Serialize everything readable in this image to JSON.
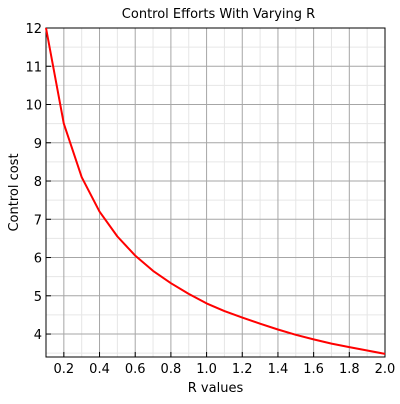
{
  "chart_data": {
    "type": "line",
    "title": "Control Efforts With Varying R",
    "xlabel": "R values",
    "ylabel": "Control cost",
    "xlim": [
      0.1,
      2.0
    ],
    "ylim": [
      3.4,
      12
    ],
    "x_ticks": [
      0.2,
      0.4,
      0.6,
      0.8,
      1.0,
      1.2,
      1.4,
      1.6,
      1.8,
      2.0
    ],
    "x_tick_labels": [
      "0.2",
      "0.4",
      "0.6",
      "0.8",
      "1.0",
      "1.2",
      "1.4",
      "1.6",
      "1.8",
      "2.0"
    ],
    "y_ticks": [
      4,
      5,
      6,
      7,
      8,
      9,
      10,
      11,
      12
    ],
    "y_tick_labels": [
      "4",
      "5",
      "6",
      "7",
      "8",
      "9",
      "10",
      "11",
      "12"
    ],
    "grid": true,
    "minor_grid": true,
    "series": [
      {
        "color": "#ff0000",
        "x": [
          0.1,
          0.2,
          0.3,
          0.4,
          0.5,
          0.6,
          0.7,
          0.8,
          0.9,
          1.0,
          1.1,
          1.2,
          1.3,
          1.4,
          1.5,
          1.6,
          1.7,
          1.8,
          1.9,
          2.0
        ],
        "y": [
          12.0,
          9.5,
          8.1,
          7.2,
          6.55,
          6.05,
          5.65,
          5.33,
          5.05,
          4.8,
          4.6,
          4.43,
          4.27,
          4.12,
          3.98,
          3.86,
          3.75,
          3.66,
          3.57,
          3.48
        ]
      }
    ]
  }
}
